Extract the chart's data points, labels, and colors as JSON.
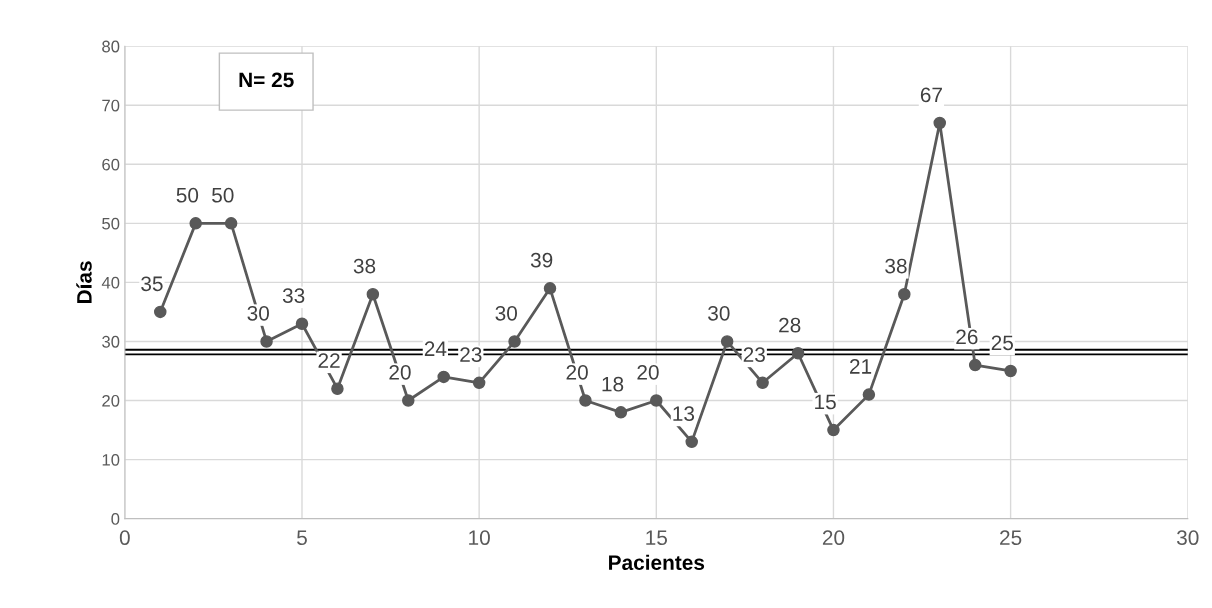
{
  "chart_data": {
    "type": "line",
    "xlabel": "Pacientes",
    "ylabel": "Días",
    "x": [
      1,
      2,
      3,
      4,
      5,
      6,
      7,
      8,
      9,
      10,
      11,
      12,
      13,
      14,
      15,
      16,
      17,
      18,
      19,
      20,
      21,
      22,
      23,
      24,
      25
    ],
    "series": [
      {
        "color": "#595959",
        "marker": "circle",
        "data_labels": true,
        "values": [
          35,
          50,
          50,
          30,
          33,
          22,
          38,
          20,
          24,
          23,
          30,
          39,
          20,
          18,
          20,
          13,
          30,
          23,
          28,
          15,
          21,
          38,
          67,
          26,
          25
        ]
      }
    ],
    "ref_lines": [
      {
        "axis": "y",
        "value": 28.6,
        "color": "#000000"
      },
      {
        "axis": "y",
        "value": 27.8,
        "color": "#000000"
      }
    ],
    "xlim": [
      0,
      30
    ],
    "xticks": [
      0,
      5,
      10,
      15,
      20,
      25,
      30
    ],
    "ylim": [
      0,
      80
    ],
    "yticks": [
      0,
      10,
      20,
      30,
      40,
      50,
      60,
      70,
      80
    ],
    "grid": true,
    "legend": false,
    "annotations": [
      "N= 25"
    ]
  }
}
